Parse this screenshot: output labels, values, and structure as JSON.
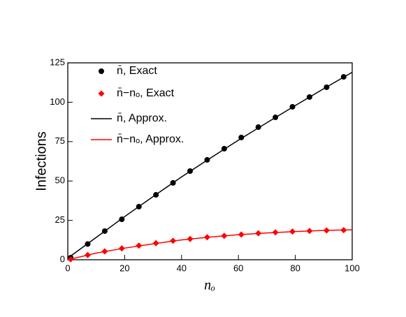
{
  "chart_data": {
    "type": "line",
    "xlabel": "nₒ",
    "ylabel": "Infections",
    "xlim": [
      0,
      100
    ],
    "xticks": [
      0,
      20,
      40,
      60,
      80,
      100
    ],
    "ylim": [
      0,
      125
    ],
    "yticks": [
      0,
      25,
      50,
      75,
      100,
      125
    ],
    "legend": "upper left",
    "series": [
      {
        "name": "n̄, Exact",
        "color": "#000000",
        "mode": "markers",
        "marker": "circle",
        "x": [
          1,
          7,
          13,
          19,
          25,
          31,
          37,
          43,
          49,
          55,
          61,
          67,
          73,
          79,
          85,
          91,
          97
        ],
        "values": [
          1.3,
          10,
          18.2,
          25.7,
          33.7,
          41.2,
          48.8,
          56.3,
          63.4,
          70.5,
          77.6,
          84.2,
          90.4,
          97.1,
          103.3,
          109.5,
          116.1
        ]
      },
      {
        "name": "n̄−nₒ, Exact",
        "color": "#ff0000",
        "mode": "markers",
        "marker": "diamond",
        "x": [
          1,
          7,
          13,
          19,
          25,
          31,
          37,
          43,
          49,
          55,
          61,
          67,
          73,
          79,
          85,
          91,
          97
        ],
        "values": [
          0.3,
          3,
          5.3,
          7.2,
          9,
          10.5,
          12,
          13.2,
          14.3,
          15.2,
          16,
          16.8,
          17.4,
          17.9,
          18.3,
          18.6,
          18.8
        ]
      },
      {
        "name": "n̄, Approx.",
        "color": "#000000",
        "mode": "line",
        "x": [
          0,
          10,
          20,
          30,
          40,
          50,
          60,
          70,
          80,
          90,
          100
        ],
        "values": [
          1,
          14.2,
          27.4,
          40.1,
          52.6,
          64.4,
          75.9,
          87,
          97.9,
          108.6,
          119
        ]
      },
      {
        "name": "n̄−nₒ, Approx.",
        "color": "#ff0000",
        "mode": "line",
        "x": [
          0,
          10,
          20,
          30,
          40,
          50,
          60,
          70,
          80,
          90,
          100
        ],
        "values": [
          0,
          4.2,
          7.4,
          10.1,
          12.6,
          14.4,
          15.9,
          17,
          17.9,
          18.6,
          19
        ]
      }
    ]
  }
}
